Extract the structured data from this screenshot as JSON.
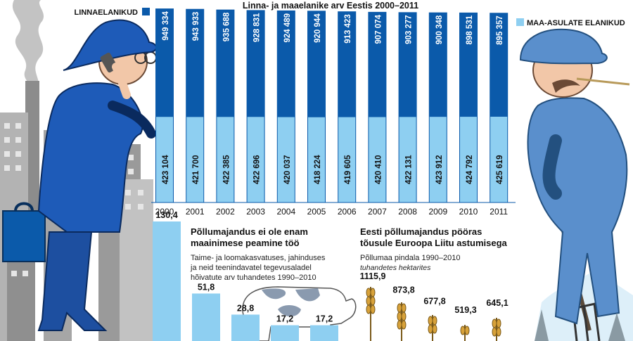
{
  "colors": {
    "urban": "#0B5AAA",
    "rural": "#8ECFF1",
    "ag_bar": "#8ECFF1",
    "text": "#111111"
  },
  "chart_data": [
    {
      "type": "bar",
      "title": "Linna- ja maaelanike arv Eestis 2000–2011",
      "categories": [
        "2000",
        "2001",
        "2002",
        "2003",
        "2004",
        "2005",
        "2006",
        "2007",
        "2008",
        "2009",
        "2010",
        "2011"
      ],
      "legend": {
        "position": "top",
        "items": [
          "urban",
          "rural"
        ]
      },
      "series": [
        {
          "key": "urban",
          "name": "LINNAELANIKUD",
          "values": [
            949334,
            943933,
            935688,
            928831,
            924489,
            920944,
            913423,
            907074,
            903277,
            900348,
            898531,
            895357
          ],
          "labels": [
            "949 334",
            "943 933",
            "935 688",
            "928 831",
            "924 489",
            "920 944",
            "913 423",
            "907 074",
            "903 277",
            "900 348",
            "898 531",
            "895 357"
          ]
        },
        {
          "key": "rural",
          "name": "MAA-ASULATE ELANIKUD",
          "values": [
            423104,
            421700,
            422385,
            422696,
            420037,
            418224,
            419605,
            420410,
            422131,
            423912,
            424792,
            425619
          ],
          "labels": [
            "423 104",
            "421 700",
            "422 385",
            "422 696",
            "420 037",
            "418 224",
            "419 605",
            "420 410",
            "422 131",
            "423 912",
            "424 792",
            "425 619"
          ]
        }
      ]
    },
    {
      "type": "bar",
      "title": "Põllumajandus ei ole enam maainimese peamine töö",
      "subtitle": "Taime- ja loomakasvatuses, jahinduses ja neid teenindavatel tegevusaladel hõivatute arv tuhandetes 1990–2010",
      "values": [
        130.4,
        51.8,
        28.8,
        17.2,
        17.2
      ],
      "labels": [
        "130,4",
        "51,8",
        "28,8",
        "17,2",
        "17,2"
      ]
    },
    {
      "type": "bar",
      "title": "Eesti põllumajandus pööras tõusule Euroopa Liitu astumisega",
      "subtitle": "Põllumaa pindala 1990–2010",
      "unit": "tuhandetes hektarites",
      "values": [
        1115.9,
        873.8,
        677.8,
        519.3,
        645.1
      ],
      "labels": [
        "1115,9",
        "873,8",
        "677,8",
        "519,3",
        "645,1"
      ]
    }
  ]
}
